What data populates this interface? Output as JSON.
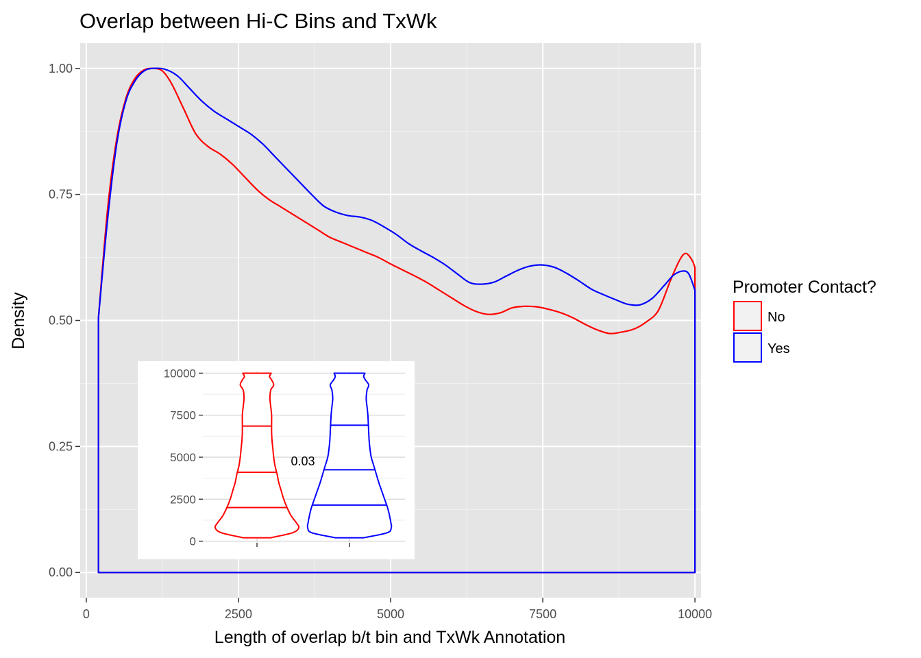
{
  "chart_data": [
    {
      "type": "line",
      "title": "Overlap between Hi-C Bins and TxWk",
      "xlabel": "Length of overlap b/t bin and TxWk Annotation",
      "ylabel": "Density",
      "xlim": [
        -100,
        10100
      ],
      "ylim": [
        -0.05,
        1.05
      ],
      "x_ticks": [
        0,
        2500,
        5000,
        7500,
        10000
      ],
      "x_tick_labels": [
        "0",
        "2500",
        "5000",
        "7500",
        "10000"
      ],
      "y_ticks": [
        0.0,
        0.25,
        0.5,
        0.75,
        1.0
      ],
      "y_tick_labels": [
        "0.00",
        "0.25",
        "0.50",
        "0.75",
        "1.00"
      ],
      "grid": true,
      "legend": {
        "title": "Promoter Contact?",
        "position": "right",
        "entries": [
          {
            "label": "No",
            "color": "#ff0000"
          },
          {
            "label": "Yes",
            "color": "#0000ff"
          }
        ]
      },
      "series": [
        {
          "name": "No",
          "color": "#ff0000",
          "x": [
            200,
            200,
            350,
            500,
            650,
            800,
            950,
            1100,
            1250,
            1400,
            1600,
            1800,
            2000,
            2200,
            2400,
            2600,
            2800,
            3000,
            3200,
            3400,
            3600,
            3800,
            4000,
            4200,
            4400,
            4600,
            4800,
            5000,
            5200,
            5400,
            5600,
            5800,
            6000,
            6200,
            6400,
            6600,
            6800,
            7000,
            7200,
            7400,
            7600,
            7800,
            8000,
            8200,
            8400,
            8600,
            8800,
            9000,
            9200,
            9400,
            9600,
            9750,
            9850,
            9950,
            10000,
            10000
          ],
          "y": [
            0.0,
            0.505,
            0.72,
            0.86,
            0.94,
            0.98,
            0.997,
            1.0,
            0.995,
            0.97,
            0.92,
            0.87,
            0.845,
            0.83,
            0.81,
            0.785,
            0.76,
            0.74,
            0.725,
            0.71,
            0.695,
            0.68,
            0.665,
            0.655,
            0.645,
            0.635,
            0.625,
            0.612,
            0.6,
            0.588,
            0.575,
            0.56,
            0.545,
            0.53,
            0.518,
            0.512,
            0.515,
            0.525,
            0.528,
            0.527,
            0.522,
            0.515,
            0.505,
            0.492,
            0.481,
            0.474,
            0.477,
            0.483,
            0.497,
            0.52,
            0.58,
            0.62,
            0.633,
            0.62,
            0.605,
            0.0
          ]
        },
        {
          "name": "Yes",
          "color": "#0000ff",
          "x": [
            200,
            200,
            350,
            500,
            650,
            800,
            950,
            1100,
            1300,
            1500,
            1700,
            1900,
            2100,
            2300,
            2500,
            2700,
            2900,
            3100,
            3300,
            3500,
            3700,
            3900,
            4100,
            4300,
            4500,
            4700,
            4900,
            5100,
            5300,
            5500,
            5700,
            5900,
            6100,
            6300,
            6500,
            6700,
            6900,
            7100,
            7300,
            7500,
            7700,
            7900,
            8100,
            8300,
            8500,
            8700,
            8900,
            9100,
            9300,
            9500,
            9650,
            9800,
            9900,
            10000,
            10000
          ],
          "y": [
            0.0,
            0.505,
            0.7,
            0.85,
            0.935,
            0.975,
            0.995,
            1.0,
            0.998,
            0.985,
            0.96,
            0.935,
            0.915,
            0.9,
            0.885,
            0.87,
            0.85,
            0.825,
            0.8,
            0.775,
            0.75,
            0.727,
            0.715,
            0.708,
            0.705,
            0.698,
            0.685,
            0.67,
            0.652,
            0.638,
            0.625,
            0.61,
            0.592,
            0.575,
            0.572,
            0.576,
            0.588,
            0.6,
            0.608,
            0.61,
            0.605,
            0.593,
            0.578,
            0.562,
            0.551,
            0.541,
            0.532,
            0.531,
            0.544,
            0.57,
            0.59,
            0.598,
            0.592,
            0.56,
            0.0
          ]
        }
      ]
    },
    {
      "type": "violin",
      "ylim": [
        -100,
        10100
      ],
      "y_ticks": [
        0,
        2500,
        5000,
        7500,
        10000
      ],
      "y_tick_labels": [
        "0",
        "2500",
        "5000",
        "7500",
        "10000"
      ],
      "grid": true,
      "annotation": "0.03",
      "series": [
        {
          "name": "No",
          "color": "#ff0000",
          "quantiles": [
            2000,
            4100,
            6850
          ],
          "y": [
            200,
            500,
            800,
            1100,
            1500,
            2000,
            2500,
            3000,
            3500,
            4000,
            4500,
            5000,
            5500,
            6000,
            6500,
            7000,
            7500,
            8000,
            8500,
            9000,
            9300,
            9600,
            9800,
            10000
          ],
          "half_width": [
            0.32,
            0.85,
            1.0,
            0.94,
            0.82,
            0.72,
            0.64,
            0.58,
            0.52,
            0.48,
            0.43,
            0.4,
            0.38,
            0.36,
            0.35,
            0.35,
            0.35,
            0.33,
            0.31,
            0.33,
            0.4,
            0.35,
            0.3,
            0.34
          ]
        },
        {
          "name": "Yes",
          "color": "#0000ff",
          "quantiles": [
            2150,
            4250,
            6900
          ],
          "y": [
            200,
            500,
            800,
            1100,
            1500,
            2000,
            2500,
            3000,
            3500,
            4000,
            4500,
            5000,
            5500,
            6000,
            6500,
            7000,
            7500,
            8000,
            8500,
            9000,
            9300,
            9600,
            9800,
            10000
          ],
          "half_width": [
            0.33,
            0.9,
            1.0,
            0.99,
            0.96,
            0.91,
            0.84,
            0.77,
            0.7,
            0.64,
            0.58,
            0.52,
            0.49,
            0.47,
            0.46,
            0.45,
            0.44,
            0.42,
            0.4,
            0.42,
            0.46,
            0.38,
            0.34,
            0.37
          ]
        }
      ]
    }
  ]
}
